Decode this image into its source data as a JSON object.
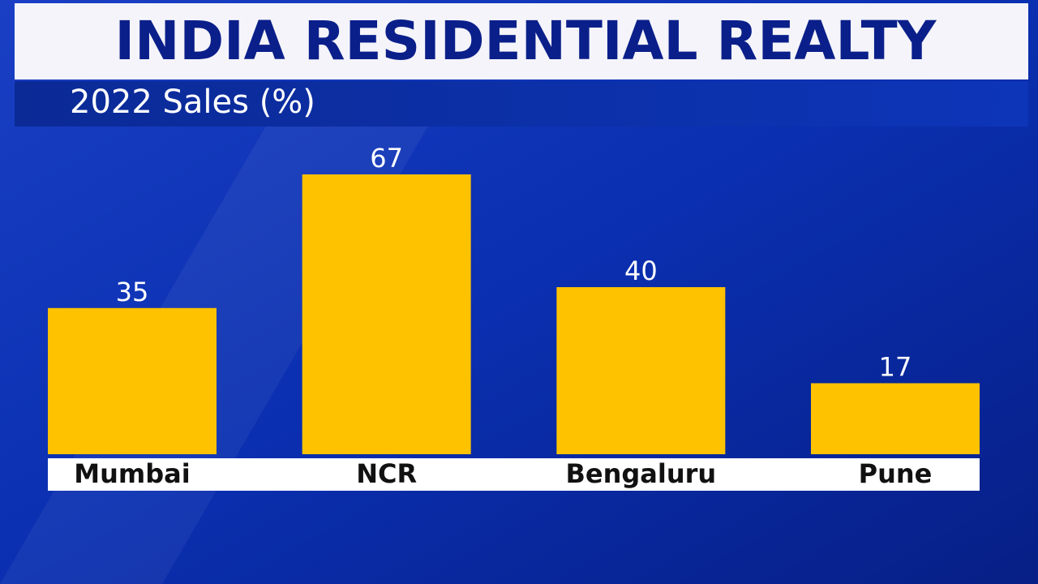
{
  "chart_data": {
    "type": "bar",
    "title": "INDIA RESIDENTIAL REALTY",
    "subtitle": "2022 Sales (%)",
    "categories": [
      "Mumbai",
      "NCR",
      "Bengaluru",
      "Pune"
    ],
    "values": [
      35,
      67,
      40,
      17
    ],
    "color": "#fec200"
  }
}
